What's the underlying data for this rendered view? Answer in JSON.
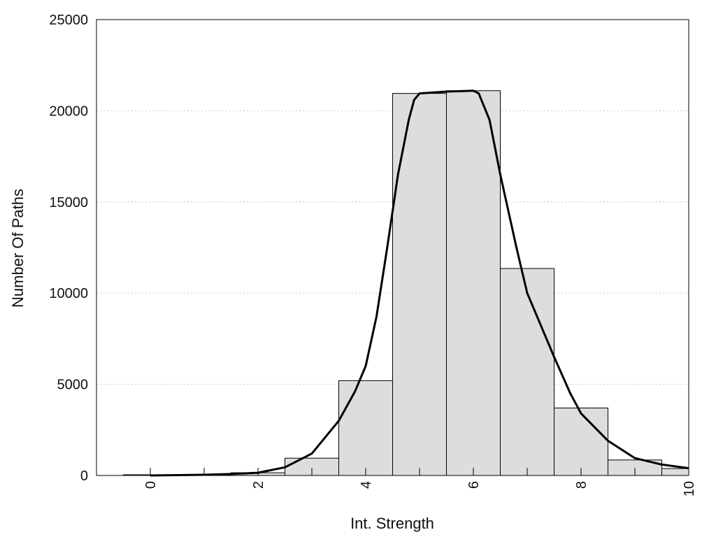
{
  "chart_data": {
    "type": "bar",
    "title": "",
    "xlabel": "Int. Strength",
    "ylabel": "Number Of Paths",
    "xlim": [
      -1,
      10
    ],
    "ylim": [
      0,
      25000
    ],
    "x_ticks": [
      0,
      2,
      4,
      6,
      8,
      10
    ],
    "y_ticks": [
      0,
      5000,
      10000,
      15000,
      20000,
      25000
    ],
    "grid": "horizontal-dotted",
    "colors": {
      "bar_fill": "#dddddd",
      "bar_stroke": "#000000",
      "curve": "#000000",
      "grid": "#cccccc"
    },
    "bins": {
      "x": [
        0,
        1,
        2,
        3,
        4,
        5,
        6,
        7,
        8,
        9,
        10
      ],
      "values": [
        40,
        50,
        150,
        950,
        5200,
        20950,
        21100,
        11350,
        3700,
        850,
        380
      ]
    },
    "curve": {
      "x": [
        0,
        0.5,
        1,
        1.5,
        2,
        2.5,
        3,
        3.5,
        3.8,
        4,
        4.2,
        4.4,
        4.6,
        4.8,
        4.9,
        5,
        5.5,
        6,
        6.1,
        6.3,
        6.5,
        6.8,
        7,
        7.5,
        7.8,
        8,
        8.5,
        9,
        9.5,
        10
      ],
      "values": [
        0,
        20,
        40,
        80,
        150,
        450,
        1200,
        3000,
        4600,
        6000,
        8700,
        12500,
        16500,
        19500,
        20600,
        20950,
        21050,
        21100,
        20950,
        19500,
        16500,
        12500,
        10000,
        6500,
        4500,
        3400,
        1900,
        950,
        600,
        400
      ]
    }
  }
}
